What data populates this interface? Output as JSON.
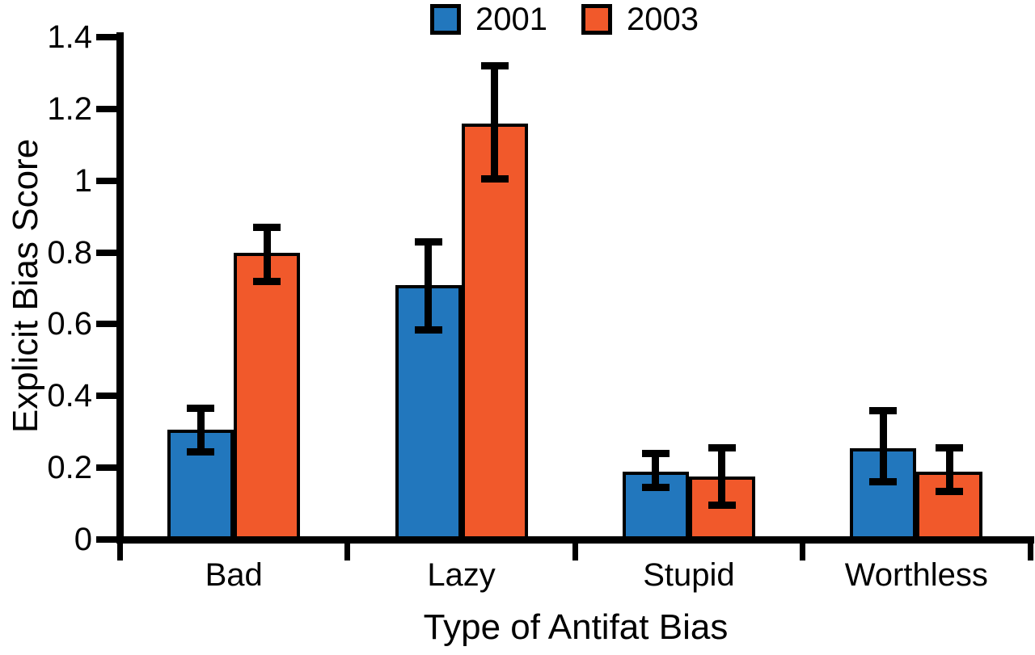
{
  "figure": {
    "background": "#ffffff",
    "text_color": "#000000",
    "axis_color": "#000000"
  },
  "chart_data": {
    "type": "bar",
    "title": "",
    "categories": [
      "Bad",
      "Lazy",
      "Stupid",
      "Worthless"
    ],
    "series": [
      {
        "name": "2001",
        "color": "#2277BD",
        "values": [
          0.305,
          0.71,
          0.19,
          0.255
        ],
        "error_low": [
          0.245,
          0.585,
          0.145,
          0.16
        ],
        "error_high": [
          0.365,
          0.83,
          0.24,
          0.36
        ]
      },
      {
        "name": "2003",
        "color": "#F1592B",
        "values": [
          0.8,
          1.16,
          0.175,
          0.19
        ],
        "error_low": [
          0.72,
          1.005,
          0.095,
          0.135
        ],
        "error_high": [
          0.87,
          1.32,
          0.255,
          0.255
        ]
      }
    ],
    "xlabel": "Type of Antifat Bias",
    "ylabel": "Explicit Bias Score",
    "ylim": [
      0,
      1.4
    ],
    "yticks": [
      0,
      0.2,
      0.4,
      0.6,
      0.8,
      1,
      1.2,
      1.4
    ],
    "ytick_labels": [
      "0",
      "0.2",
      "0.4",
      "0.6",
      "0.8",
      "1",
      "1.2",
      "1.4"
    ],
    "grid": false,
    "legend_position": "top-center",
    "error_bars": true,
    "bar_outline_color": "#000000"
  }
}
